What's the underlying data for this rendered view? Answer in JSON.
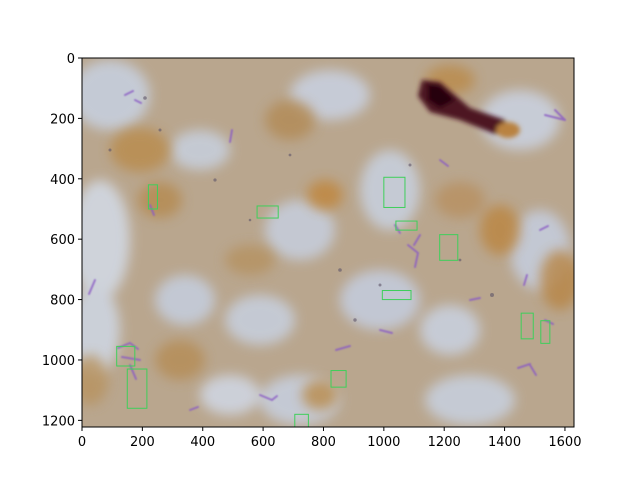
{
  "figure": {
    "image_width": 1630,
    "image_height": 1222,
    "xlim": [
      0,
      1630
    ],
    "ylim": [
      1222,
      0
    ],
    "xticks": [
      0,
      200,
      400,
      600,
      800,
      1000,
      1200,
      1400,
      1600
    ],
    "yticks": [
      0,
      200,
      400,
      600,
      800,
      1000,
      1200
    ],
    "xtick_labels": [
      "0",
      "200",
      "400",
      "600",
      "800",
      "1000",
      "1200",
      "1400",
      "1600"
    ],
    "ytick_labels": [
      "0",
      "200",
      "400",
      "600",
      "800",
      "1000",
      "1200"
    ],
    "box_color": "#3ecf5a",
    "colors": {
      "background_tan": "#bba68c",
      "pale_blue": "#c9d3e3",
      "bacteria_purple": "#8a5bc4",
      "debris_dark": "#4a0e1c",
      "brown_patch": "#b88a4a"
    }
  },
  "detections": [
    {
      "x": 220,
      "y": 420,
      "w": 30,
      "h": 80
    },
    {
      "x": 580,
      "y": 490,
      "w": 70,
      "h": 40
    },
    {
      "x": 1000,
      "y": 395,
      "w": 70,
      "h": 100
    },
    {
      "x": 1040,
      "y": 540,
      "w": 70,
      "h": 30
    },
    {
      "x": 1185,
      "y": 585,
      "w": 60,
      "h": 85
    },
    {
      "x": 995,
      "y": 770,
      "w": 95,
      "h": 30
    },
    {
      "x": 1455,
      "y": 845,
      "w": 40,
      "h": 85
    },
    {
      "x": 1520,
      "y": 870,
      "w": 30,
      "h": 75
    },
    {
      "x": 115,
      "y": 955,
      "w": 60,
      "h": 65
    },
    {
      "x": 150,
      "y": 1030,
      "w": 65,
      "h": 130
    },
    {
      "x": 825,
      "y": 1035,
      "w": 50,
      "h": 55
    },
    {
      "x": 705,
      "y": 1180,
      "w": 45,
      "h": 42
    }
  ]
}
